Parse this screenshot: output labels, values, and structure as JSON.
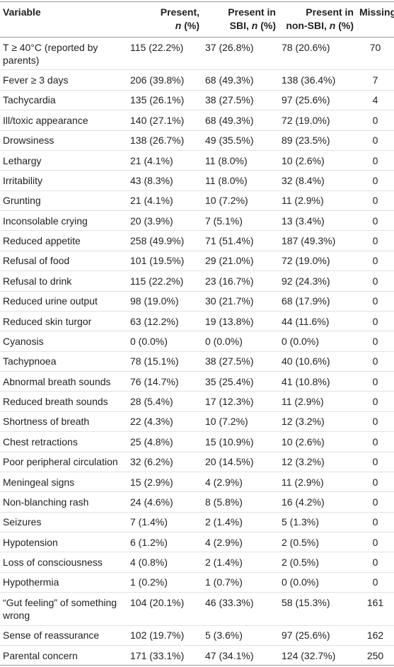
{
  "table": {
    "header": [
      [
        "Variable"
      ],
      [
        "Present,",
        "n (%)"
      ],
      [
        "Present in",
        "SBI, n (%)"
      ],
      [
        "Present in",
        "non-SBI, n (%)"
      ],
      [
        "Missing"
      ]
    ],
    "rows": [
      [
        "T ≥ 40°C (reported by parents)",
        "115 (22.2%)",
        "37 (26.8%)",
        "78 (20.6%)",
        "70"
      ],
      [
        "Fever ≥ 3 days",
        "206 (39.8%)",
        "68 (49.3%)",
        "138 (36.4%)",
        "7"
      ],
      [
        "Tachycardia",
        "135 (26.1%)",
        "38 (27.5%)",
        "97 (25.6%)",
        "4"
      ],
      [
        "Ill/toxic appearance",
        "140 (27.1%)",
        "68 (49.3%)",
        "72 (19.0%)",
        "0"
      ],
      [
        "Drowsiness",
        "138 (26.7%)",
        "49 (35.5%)",
        "89 (23.5%)",
        "0"
      ],
      [
        "Lethargy",
        "21 (4.1%)",
        "11 (8.0%)",
        "10 (2.6%)",
        "0"
      ],
      [
        "Irritability",
        "43 (8.3%)",
        "11 (8.0%)",
        "32 (8.4%)",
        "0"
      ],
      [
        "Grunting",
        "21 (4.1%)",
        "10 (7.2%)",
        "11 (2.9%)",
        "0"
      ],
      [
        "Inconsolable crying",
        "20 (3.9%)",
        "7 (5.1%)",
        "13 (3.4%)",
        "0"
      ],
      [
        "Reduced appetite",
        "258 (49.9%)",
        "71 (51.4%)",
        "187 (49.3%)",
        "0"
      ],
      [
        "Refusal of food",
        "101 (19.5%)",
        "29 (21.0%)",
        "72 (19.0%)",
        "0"
      ],
      [
        "Refusal to drink",
        "115 (22.2%)",
        "23 (16.7%)",
        "92 (24.3%)",
        "0"
      ],
      [
        "Reduced urine output",
        "98 (19.0%)",
        "30 (21.7%)",
        "68 (17.9%)",
        "0"
      ],
      [
        "Reduced skin turgor",
        "63 (12.2%)",
        "19 (13.8%)",
        "44 (11.6%)",
        "0"
      ],
      [
        "Cyanosis",
        "0 (0.0%)",
        "0 (0.0%)",
        "0 (0.0%)",
        "0"
      ],
      [
        "Tachypnoea",
        "78 (15.1%)",
        "38 (27.5%)",
        "40 (10.6%)",
        "0"
      ],
      [
        "Abnormal breath sounds",
        "76 (14.7%)",
        "35 (25.4%)",
        "41 (10.8%)",
        "0"
      ],
      [
        "Reduced breath sounds",
        "28 (5.4%)",
        "17 (12.3%)",
        "11 (2.9%)",
        "0"
      ],
      [
        "Shortness of breath",
        "22 (4.3%)",
        "10 (7.2%)",
        "12 (3.2%)",
        "0"
      ],
      [
        "Chest retractions",
        "25 (4.8%)",
        "15 (10.9%)",
        "10 (2.6%)",
        "0"
      ],
      [
        "Poor peripheral circulation",
        "32 (6.2%)",
        "20 (14.5%)",
        "12 (3.2%)",
        "0"
      ],
      [
        "Meningeal signs",
        "15 (2.9%)",
        "4 (2.9%)",
        "11 (2.9%)",
        "0"
      ],
      [
        "Non-blanching rash",
        "24 (4.6%)",
        "8 (5.8%)",
        "16 (4.2%)",
        "0"
      ],
      [
        "Seizures",
        "7 (1.4%)",
        "2 (1.4%)",
        "5 (1.3%)",
        "0"
      ],
      [
        "Hypotension",
        "6 (1.2%)",
        "4 (2.9%)",
        "2 (0.5%)",
        "0"
      ],
      [
        "Loss of consciousness",
        "4 (0.8%)",
        "2 (1.4%)",
        "2 (0.5%)",
        "0"
      ],
      [
        "Hypothermia",
        "1 (0.2%)",
        "1 (0.7%)",
        "0 (0.0%)",
        "0"
      ],
      [
        "“Gut feeling” of something wrong",
        "104 (20.1%)",
        "46 (33.3%)",
        "58 (15.3%)",
        "161"
      ],
      [
        "Sense of reassurance",
        "102 (19.7%)",
        "5 (3.6%)",
        "97 (25.6%)",
        "162"
      ],
      [
        "Parental concern",
        "171 (33.1%)",
        "47 (34.1%)",
        "124 (32.7%)",
        "250"
      ]
    ]
  }
}
